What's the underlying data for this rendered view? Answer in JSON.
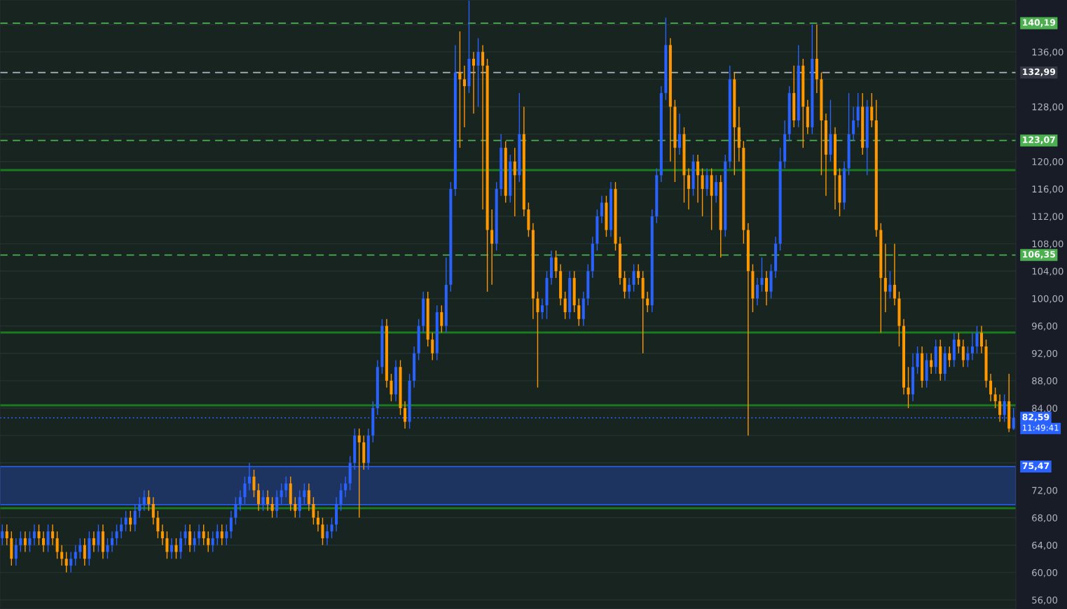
{
  "chart_data": {
    "type": "candlestick",
    "categories": [
      null,
      null,
      null,
      null,
      null,
      null,
      null,
      null,
      null,
      null,
      null,
      null,
      null,
      null,
      null,
      null,
      null,
      null,
      null,
      null,
      null,
      null,
      null,
      null,
      null,
      null,
      null,
      null,
      null,
      null,
      null,
      null,
      null,
      null,
      null,
      null,
      null,
      null,
      null,
      null,
      null,
      null,
      null,
      null,
      null,
      null,
      null,
      null,
      null,
      null,
      null,
      null,
      null,
      null,
      null,
      null,
      null,
      null,
      null,
      null,
      null,
      null,
      null,
      null,
      null,
      null,
      null,
      null,
      null,
      null,
      null,
      null,
      null,
      null,
      null,
      null,
      null,
      null,
      null,
      null,
      null,
      null,
      null,
      null,
      null,
      null,
      null,
      null,
      null,
      null,
      null,
      null,
      null,
      null,
      null,
      null,
      null,
      null,
      null,
      null,
      null,
      null,
      null,
      null,
      null,
      null,
      null,
      null,
      null,
      null,
      null,
      null,
      null,
      null,
      null,
      null,
      null,
      null,
      null,
      null,
      null,
      null,
      null,
      null,
      null,
      null,
      null,
      null,
      null,
      null,
      null,
      null,
      null,
      null,
      null,
      null,
      null,
      null,
      null,
      null,
      null,
      null,
      null,
      null,
      null,
      null,
      null,
      null,
      null,
      null,
      null,
      null,
      null,
      null,
      null,
      null,
      null,
      null,
      null,
      null,
      null,
      null,
      null,
      null,
      null,
      null,
      null,
      null,
      null,
      null,
      null,
      null,
      null,
      null,
      null,
      null,
      null,
      null,
      null,
      null,
      null,
      null,
      null,
      null,
      null,
      null,
      null,
      null,
      null,
      null,
      null,
      null,
      null,
      null,
      null,
      null,
      null,
      null,
      null,
      null,
      null,
      null,
      null,
      null,
      null,
      null,
      null,
      null,
      null,
      null,
      null,
      null,
      null,
      null,
      null,
      null,
      null,
      null,
      null,
      null,
      null,
      null
    ],
    "ylim": [
      54.67,
      143.58
    ],
    "tick_labels": "y",
    "grid": "y",
    "yticks": [
      {
        "value": 56,
        "label": "56,00"
      },
      {
        "value": 60,
        "label": "60,00"
      },
      {
        "value": 64,
        "label": "64,00"
      },
      {
        "value": 68,
        "label": "68,00"
      },
      {
        "value": 72,
        "label": "72,00"
      },
      {
        "value": 76,
        "label": null
      },
      {
        "value": 80,
        "label": null
      },
      {
        "value": 84,
        "label": "84,00"
      },
      {
        "value": 88,
        "label": "88,00"
      },
      {
        "value": 92,
        "label": "92,00"
      },
      {
        "value": 96,
        "label": "96,00"
      },
      {
        "value": 100,
        "label": "100,00"
      },
      {
        "value": 104,
        "label": "104,00"
      },
      {
        "value": 108,
        "label": "108,00"
      },
      {
        "value": 112,
        "label": "112,00"
      },
      {
        "value": 116,
        "label": "116,00"
      },
      {
        "value": 120,
        "label": "120,00"
      },
      {
        "value": 124,
        "label": null
      },
      {
        "value": 128,
        "label": "128,00"
      },
      {
        "value": 132,
        "label": null
      },
      {
        "value": 136,
        "label": "136,00"
      },
      {
        "value": 140,
        "label": null
      }
    ],
    "ref_lines": [
      {
        "axis": "y",
        "value": 118.75,
        "color": "#1b7a1f",
        "line_style": "solid"
      },
      {
        "axis": "y",
        "value": 95.04,
        "color": "#1b7a1f",
        "line_style": "solid"
      },
      {
        "axis": "y",
        "value": 84.41,
        "color": "#1b7a1f",
        "line_style": "solid"
      },
      {
        "axis": "y",
        "value": 69.39,
        "color": "#1b7a1f",
        "line_style": "solid"
      },
      {
        "axis": "y",
        "value": 140.19,
        "label": "140,19",
        "color": "#4caf50",
        "line_style": "dashed"
      },
      {
        "axis": "y",
        "value": 123.07,
        "label": "123,07",
        "color": "#4caf50",
        "line_style": "dashed"
      },
      {
        "axis": "y",
        "value": 106.35,
        "label": "106,35",
        "color": "#4caf50",
        "line_style": "dashed"
      },
      {
        "axis": "y",
        "value": 132.99,
        "label": "132,99",
        "color": "#b2b5be",
        "line_style": "dashed"
      },
      {
        "axis": "y",
        "value": 82.59,
        "label": "82,59",
        "color": "#2962ff",
        "line_style": "dotted"
      }
    ],
    "bands": [
      {
        "axis": "y",
        "from": 69.9,
        "to": 75.47,
        "label": "75,47",
        "color": "#1d3461"
      }
    ],
    "annotations": [
      "11:49:41"
    ],
    "series": [
      {
        "ohlc": [
          [
            65,
            67,
            64,
            66
          ],
          [
            66,
            67,
            64,
            65
          ],
          [
            65,
            66,
            61,
            62
          ],
          [
            62,
            65,
            61,
            64
          ],
          [
            64,
            66,
            63,
            65
          ],
          [
            65,
            66,
            63,
            64
          ],
          [
            64,
            66,
            63,
            65
          ],
          [
            65,
            67,
            64,
            66
          ],
          [
            66,
            67,
            64,
            65
          ],
          [
            65,
            66,
            63,
            64
          ],
          [
            64,
            67,
            63,
            66
          ],
          [
            66,
            67,
            64,
            65
          ],
          [
            65,
            66,
            62,
            63
          ],
          [
            63,
            64,
            61,
            62
          ],
          [
            62,
            63,
            60,
            61
          ],
          [
            61,
            63,
            60,
            62
          ],
          [
            62,
            64,
            61,
            63
          ],
          [
            63,
            65,
            62,
            64
          ],
          [
            64,
            65,
            61,
            62
          ],
          [
            62,
            66,
            61,
            65
          ],
          [
            65,
            66,
            63,
            64
          ],
          [
            64,
            67,
            63,
            66
          ],
          [
            66,
            67,
            62,
            63
          ],
          [
            63,
            65,
            62,
            64
          ],
          [
            64,
            66,
            63,
            65
          ],
          [
            65,
            67,
            64,
            66
          ],
          [
            66,
            68,
            65,
            67
          ],
          [
            67,
            69,
            66,
            68
          ],
          [
            68,
            69,
            66,
            67
          ],
          [
            67,
            70,
            66,
            69
          ],
          [
            69,
            71,
            68,
            70
          ],
          [
            70,
            72,
            69,
            71
          ],
          [
            71,
            72,
            69,
            70
          ],
          [
            70,
            71,
            67,
            68
          ],
          [
            68,
            69,
            65,
            66
          ],
          [
            66,
            67,
            64,
            65
          ],
          [
            65,
            66,
            62,
            63
          ],
          [
            63,
            65,
            62,
            64
          ],
          [
            64,
            65,
            62,
            63
          ],
          [
            63,
            66,
            62,
            65
          ],
          [
            65,
            67,
            64,
            66
          ],
          [
            66,
            67,
            63,
            64
          ],
          [
            64,
            66,
            63,
            65
          ],
          [
            65,
            67,
            64,
            66
          ],
          [
            66,
            67,
            64,
            65
          ],
          [
            65,
            66,
            63,
            64
          ],
          [
            64,
            66,
            63,
            65
          ],
          [
            65,
            67,
            64,
            66
          ],
          [
            66,
            67,
            64,
            65
          ],
          [
            65,
            67,
            64,
            66
          ],
          [
            66,
            69,
            65,
            68
          ],
          [
            68,
            71,
            67,
            70
          ],
          [
            70,
            72,
            69,
            71
          ],
          [
            71,
            74,
            70,
            73
          ],
          [
            73,
            76,
            72,
            74
          ],
          [
            74,
            75,
            71,
            72
          ],
          [
            72,
            73,
            69,
            70
          ],
          [
            70,
            72,
            69,
            71
          ],
          [
            71,
            72,
            69,
            70
          ],
          [
            70,
            71,
            68,
            69
          ],
          [
            69,
            72,
            68,
            71
          ],
          [
            71,
            73,
            70,
            72
          ],
          [
            72,
            74,
            71,
            73
          ],
          [
            73,
            74,
            69,
            70
          ],
          [
            70,
            71,
            68,
            69
          ],
          [
            69,
            72,
            68,
            71
          ],
          [
            71,
            73,
            70,
            72
          ],
          [
            72,
            73,
            69,
            70
          ],
          [
            70,
            71,
            67,
            68
          ],
          [
            68,
            69,
            66,
            67
          ],
          [
            67,
            68,
            64,
            65
          ],
          [
            65,
            67,
            64,
            66
          ],
          [
            66,
            68,
            65,
            67
          ],
          [
            67,
            71,
            66,
            70
          ],
          [
            70,
            73,
            69,
            72
          ],
          [
            72,
            74,
            71,
            73
          ],
          [
            73,
            77,
            72,
            76
          ],
          [
            76,
            81,
            75,
            80
          ],
          [
            80,
            81,
            68,
            79
          ],
          [
            79,
            80,
            75,
            76
          ],
          [
            76,
            81,
            75,
            80
          ],
          [
            80,
            85,
            79,
            84
          ],
          [
            84,
            91,
            83,
            90
          ],
          [
            90,
            97,
            89,
            96
          ],
          [
            96,
            97,
            87,
            88
          ],
          [
            88,
            89,
            85,
            86
          ],
          [
            86,
            91,
            85,
            90
          ],
          [
            90,
            91,
            83,
            84
          ],
          [
            84,
            85,
            81,
            82
          ],
          [
            82,
            89,
            81,
            88
          ],
          [
            88,
            93,
            87,
            92
          ],
          [
            92,
            97,
            91,
            96
          ],
          [
            96,
            101,
            95,
            100
          ],
          [
            100,
            101,
            93,
            94
          ],
          [
            94,
            95,
            91,
            92
          ],
          [
            92,
            99,
            91,
            98
          ],
          [
            98,
            99,
            95,
            96
          ],
          [
            96,
            106,
            95,
            102
          ],
          [
            102,
            117,
            101,
            116
          ],
          [
            116,
            137,
            115,
            133
          ],
          [
            133,
            139,
            122,
            132
          ],
          [
            132,
            134,
            125,
            131
          ],
          [
            131,
            143.5,
            130,
            135
          ],
          [
            135,
            136,
            127,
            134
          ],
          [
            134,
            138,
            128,
            136
          ],
          [
            136,
            137,
            113,
            134
          ],
          [
            134,
            135,
            101,
            110
          ],
          [
            110,
            113,
            102,
            108
          ],
          [
            108,
            117,
            107,
            116
          ],
          [
            116,
            124,
            115,
            122
          ],
          [
            122,
            123,
            114,
            115
          ],
          [
            115,
            121,
            114,
            120
          ],
          [
            120,
            122,
            112,
            118
          ],
          [
            118,
            130,
            117,
            124
          ],
          [
            124,
            128,
            112,
            113
          ],
          [
            113,
            114,
            109,
            110
          ],
          [
            110,
            111,
            97,
            100
          ],
          [
            100,
            101,
            87,
            98
          ],
          [
            98,
            100,
            97,
            99
          ],
          [
            99,
            104,
            97,
            103
          ],
          [
            103,
            107,
            102,
            106
          ],
          [
            106,
            107,
            103,
            104
          ],
          [
            104,
            105,
            99,
            100
          ],
          [
            100,
            101,
            97,
            98
          ],
          [
            98,
            104,
            97,
            103
          ],
          [
            103,
            104,
            98,
            99
          ],
          [
            99,
            100,
            96,
            97
          ],
          [
            97,
            101,
            96,
            100
          ],
          [
            100,
            105,
            99,
            104
          ],
          [
            104,
            109,
            103,
            108
          ],
          [
            108,
            113,
            107,
            112
          ],
          [
            112,
            115,
            111,
            114
          ],
          [
            114,
            115,
            109,
            110
          ],
          [
            110,
            117,
            109,
            116
          ],
          [
            116,
            117,
            107,
            108
          ],
          [
            108,
            109,
            102,
            103
          ],
          [
            103,
            104,
            100,
            101
          ],
          [
            101,
            103,
            100,
            102
          ],
          [
            102,
            105,
            101,
            104
          ],
          [
            104,
            105,
            102,
            103
          ],
          [
            103,
            104,
            92,
            100
          ],
          [
            100,
            101,
            98,
            99
          ],
          [
            99,
            113,
            98,
            112
          ],
          [
            112,
            119,
            111,
            118
          ],
          [
            118,
            131,
            117,
            130
          ],
          [
            130,
            141,
            129,
            137
          ],
          [
            137,
            138,
            120,
            128
          ],
          [
            128,
            129,
            117,
            122
          ],
          [
            122,
            127,
            121,
            124
          ],
          [
            124,
            125,
            114,
            118
          ],
          [
            118,
            119,
            113,
            116
          ],
          [
            116,
            121,
            115,
            120
          ],
          [
            120,
            121,
            114,
            118
          ],
          [
            118,
            119,
            112,
            116
          ],
          [
            116,
            119,
            115,
            118
          ],
          [
            118,
            119,
            110,
            115
          ],
          [
            115,
            118,
            114,
            117
          ],
          [
            117,
            118,
            106,
            110
          ],
          [
            110,
            121,
            109,
            120
          ],
          [
            120,
            134,
            119,
            132
          ],
          [
            132,
            133,
            118,
            125
          ],
          [
            125,
            128,
            120,
            122
          ],
          [
            122,
            123,
            108,
            110
          ],
          [
            110,
            111,
            80,
            104
          ],
          [
            104,
            105,
            98,
            100
          ],
          [
            100,
            103,
            99,
            102
          ],
          [
            102,
            106,
            101,
            103
          ],
          [
            103,
            104,
            99,
            101
          ],
          [
            101,
            105,
            100,
            104
          ],
          [
            104,
            109,
            103,
            108
          ],
          [
            108,
            122,
            107,
            120
          ],
          [
            120,
            126,
            119,
            124
          ],
          [
            124,
            131,
            123,
            130
          ],
          [
            130,
            134,
            125,
            126
          ],
          [
            126,
            137,
            125,
            134
          ],
          [
            134,
            135,
            122,
            128
          ],
          [
            128,
            129,
            124,
            125
          ],
          [
            125,
            140,
            124,
            135
          ],
          [
            135,
            140,
            130,
            132
          ],
          [
            132,
            133,
            118,
            126
          ],
          [
            126,
            127,
            115,
            121
          ],
          [
            121,
            129,
            120,
            124
          ],
          [
            124,
            125,
            113,
            118
          ],
          [
            118,
            119,
            112,
            114
          ],
          [
            114,
            120,
            113,
            119
          ],
          [
            119,
            130,
            118,
            124
          ],
          [
            124,
            128,
            123,
            126
          ],
          [
            126,
            130,
            125,
            128
          ],
          [
            128,
            130,
            121,
            122
          ],
          [
            122,
            129,
            118,
            128
          ],
          [
            128,
            130,
            125,
            126
          ],
          [
            126,
            129,
            109,
            110
          ],
          [
            110,
            111,
            95,
            103
          ],
          [
            103,
            108,
            98,
            101
          ],
          [
            101,
            104,
            100,
            102
          ],
          [
            102,
            108,
            99,
            100
          ],
          [
            100,
            101,
            93,
            96
          ],
          [
            96,
            97,
            86,
            87
          ],
          [
            87,
            90,
            84,
            86
          ],
          [
            86,
            92,
            85,
            90
          ],
          [
            90,
            93,
            89,
            92
          ],
          [
            92,
            93,
            87,
            88
          ],
          [
            88,
            92,
            87,
            91
          ],
          [
            91,
            92,
            89,
            90
          ],
          [
            90,
            94,
            89,
            93
          ],
          [
            93,
            94,
            88,
            89
          ],
          [
            89,
            93,
            88,
            92
          ],
          [
            92,
            93,
            90,
            91
          ],
          [
            91,
            95,
            90,
            94
          ],
          [
            94,
            95,
            92,
            93
          ],
          [
            93,
            94,
            90,
            91
          ],
          [
            91,
            93,
            90,
            92
          ],
          [
            92,
            95,
            91,
            93
          ],
          [
            93,
            96,
            92,
            95
          ],
          [
            95,
            96,
            92,
            93
          ],
          [
            93,
            94,
            87,
            88
          ],
          [
            88,
            89,
            85,
            86
          ],
          [
            86,
            87,
            84,
            85
          ],
          [
            85,
            86,
            82,
            83
          ],
          [
            83,
            86,
            82,
            85
          ],
          [
            85,
            89,
            80.5,
            81
          ],
          [
            81,
            84,
            80.8,
            82.59
          ]
        ],
        "colors": [
          "#2962ff",
          "#ff9800",
          "#ff9800",
          "#2962ff",
          "#2962ff",
          "#ff9800",
          "#2962ff",
          "#2962ff",
          "#ff9800",
          "#ff9800",
          "#2962ff",
          "#ff9800",
          "#ff9800",
          "#ff9800",
          "#ff9800",
          "#2962ff",
          "#2962ff",
          "#2962ff",
          "#ff9800",
          "#2962ff",
          "#ff9800",
          "#2962ff",
          "#ff9800",
          "#2962ff",
          "#2962ff",
          "#2962ff",
          "#2962ff",
          "#2962ff",
          "#ff9800",
          "#2962ff",
          "#2962ff",
          "#2962ff",
          "#ff9800",
          "#ff9800",
          "#ff9800",
          "#ff9800",
          "#ff9800",
          "#2962ff",
          "#ff9800",
          "#2962ff",
          "#2962ff",
          "#ff9800",
          "#2962ff",
          "#2962ff",
          "#ff9800",
          "#ff9800",
          "#2962ff",
          "#2962ff",
          "#ff9800",
          "#2962ff",
          "#2962ff",
          "#2962ff",
          "#2962ff",
          "#2962ff",
          "#2962ff",
          "#ff9800",
          "#ff9800",
          "#2962ff",
          "#ff9800",
          "#ff9800",
          "#2962ff",
          "#2962ff",
          "#2962ff",
          "#ff9800",
          "#ff9800",
          "#2962ff",
          "#2962ff",
          "#ff9800",
          "#ff9800",
          "#ff9800",
          "#ff9800",
          "#2962ff",
          "#2962ff",
          "#2962ff",
          "#2962ff",
          "#2962ff",
          "#2962ff",
          "#2962ff",
          "#ff9800",
          "#ff9800",
          "#2962ff",
          "#2962ff",
          "#2962ff",
          "#2962ff",
          "#ff9800",
          "#ff9800",
          "#2962ff",
          "#ff9800",
          "#ff9800",
          "#2962ff",
          "#2962ff",
          "#2962ff",
          "#2962ff",
          "#ff9800",
          "#ff9800",
          "#2962ff",
          "#ff9800",
          "#2962ff",
          "#2962ff",
          "#2962ff",
          "#ff9800",
          "#ff9800",
          "#2962ff",
          "#ff9800",
          "#2962ff",
          "#ff9800",
          "#ff9800",
          "#ff9800",
          "#2962ff",
          "#2962ff",
          "#ff9800",
          "#2962ff",
          "#ff9800",
          "#2962ff",
          "#ff9800",
          "#ff9800",
          "#ff9800",
          "#ff9800",
          "#2962ff",
          "#2962ff",
          "#2962ff",
          "#ff9800",
          "#ff9800",
          "#ff9800",
          "#2962ff",
          "#ff9800",
          "#ff9800",
          "#2962ff",
          "#2962ff",
          "#2962ff",
          "#2962ff",
          "#2962ff",
          "#ff9800",
          "#2962ff",
          "#ff9800",
          "#ff9800",
          "#ff9800",
          "#2962ff",
          "#2962ff",
          "#ff9800",
          "#ff9800",
          "#ff9800",
          "#2962ff",
          "#2962ff",
          "#2962ff",
          "#2962ff",
          "#ff9800",
          "#ff9800",
          "#2962ff",
          "#ff9800",
          "#ff9800",
          "#2962ff",
          "#ff9800",
          "#ff9800",
          "#2962ff",
          "#ff9800",
          "#2962ff",
          "#ff9800",
          "#2962ff",
          "#2962ff",
          "#ff9800",
          "#ff9800",
          "#ff9800",
          "#ff9800",
          "#ff9800",
          "#2962ff",
          "#2962ff",
          "#ff9800",
          "#2962ff",
          "#2962ff",
          "#2962ff",
          "#2962ff",
          "#2962ff",
          "#ff9800",
          "#2962ff",
          "#ff9800",
          "#ff9800",
          "#2962ff",
          "#ff9800",
          "#ff9800",
          "#ff9800",
          "#2962ff",
          "#ff9800",
          "#ff9800",
          "#2962ff",
          "#2962ff",
          "#2962ff",
          "#2962ff",
          "#ff9800",
          "#2962ff",
          "#ff9800",
          "#ff9800",
          "#ff9800",
          "#ff9800",
          "#2962ff",
          "#ff9800",
          "#ff9800",
          "#ff9800",
          "#ff9800",
          "#2962ff",
          "#2962ff",
          "#ff9800",
          "#2962ff",
          "#ff9800",
          "#2962ff",
          "#ff9800",
          "#2962ff",
          "#ff9800",
          "#2962ff",
          "#ff9800",
          "#ff9800",
          "#2962ff",
          "#2962ff",
          "#2962ff",
          "#ff9800",
          "#ff9800",
          "#ff9800",
          "#ff9800",
          "#ff9800",
          "#2962ff",
          "#ff9800",
          "#2962ff"
        ]
      }
    ]
  }
}
